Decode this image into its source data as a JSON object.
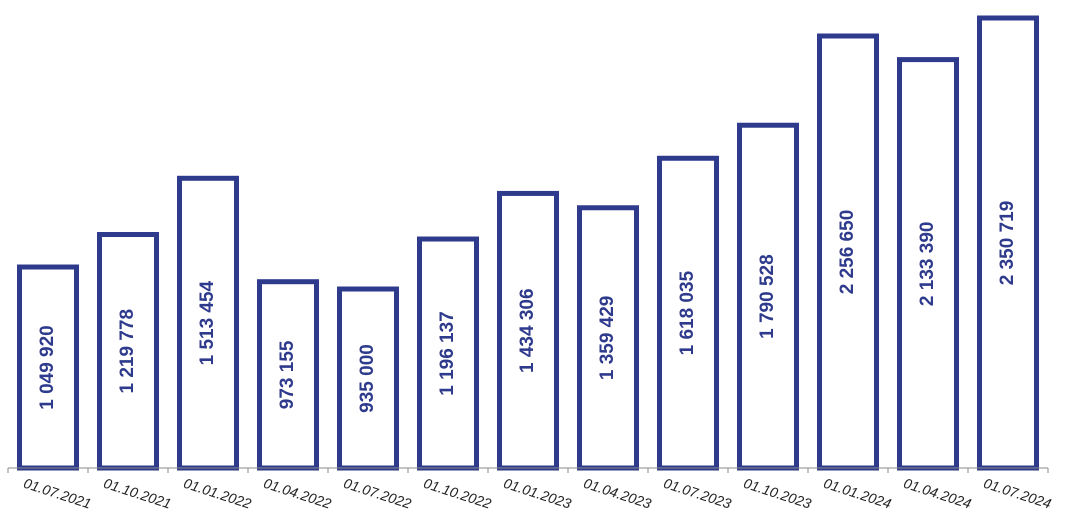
{
  "chart_data": {
    "type": "bar",
    "categories": [
      "01.07.2021",
      "01.10.2021",
      "01.01.2022",
      "01.04.2022",
      "01.07.2022",
      "01.10.2022",
      "01.01.2023",
      "01.04.2023",
      "01.07.2023",
      "01.10.2023",
      "01.01.2024",
      "01.04.2024",
      "01.07.2024"
    ],
    "values": [
      1049920,
      1219778,
      1513454,
      973155,
      935000,
      1196137,
      1434306,
      1359429,
      1618035,
      1790528,
      2256650,
      2133390,
      2350719
    ],
    "value_labels": [
      "1 049 920",
      "1 219 778",
      "1 513 454",
      "973 155",
      "935 000",
      "1 196 137",
      "1 434 306",
      "1 359 429",
      "1 618 035",
      "1 790 528",
      "2 256 650",
      "2 133 390",
      "2 350 719"
    ],
    "title": "",
    "xlabel": "",
    "ylabel": "",
    "ylim": [
      0,
      2350719
    ],
    "grid": false,
    "legend": "none",
    "colors": {
      "bar_stroke": "#2e3a8c",
      "bar_fill": "#ffffff",
      "label": "#2e3a8c",
      "axis": "#888888"
    }
  }
}
